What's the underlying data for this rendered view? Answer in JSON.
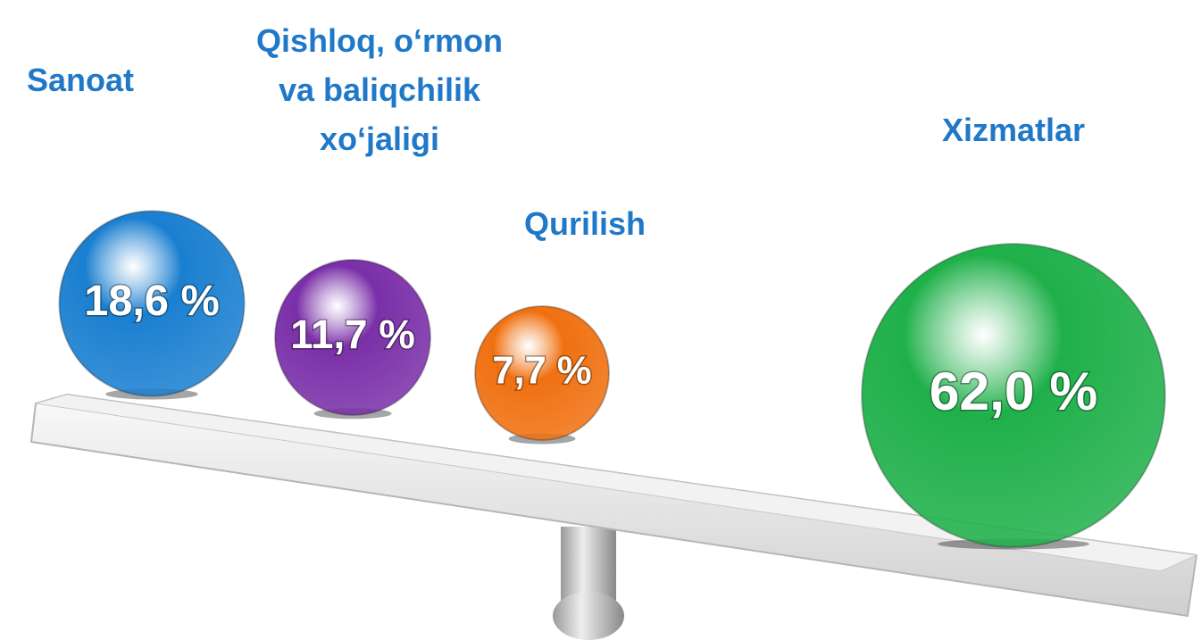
{
  "chart_data": {
    "type": "bubble",
    "categories": [
      "Sanoat",
      "Qishloq, o‘rmon\nva baliqchilik\nxo‘jaligi",
      "Qurilish",
      "Xizmatlar"
    ],
    "values": [
      18.6,
      11.7,
      7.7,
      62.0
    ],
    "value_labels": [
      "18,6 %",
      "11,7 %",
      "7,7 %",
      "62,0 %"
    ],
    "colors": [
      "#1a7fd0",
      "#7a2fa8",
      "#f07010",
      "#1fb04a"
    ]
  }
}
